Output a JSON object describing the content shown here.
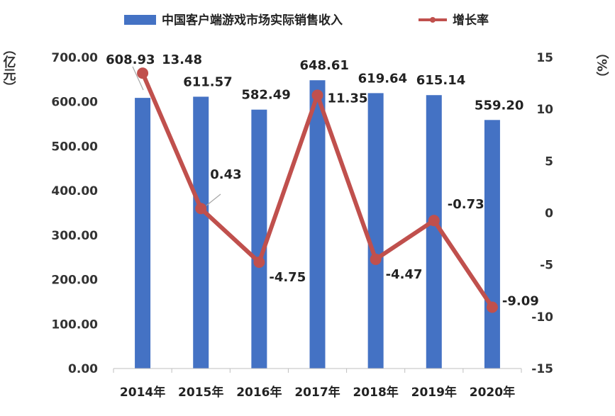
{
  "chart_data": {
    "type": "bar",
    "categories": [
      "2014年",
      "2015年",
      "2016年",
      "2017年",
      "2018年",
      "2019年",
      "2020年"
    ],
    "series": [
      {
        "name": "中国客户端游戏市场实际销售收入",
        "type": "bar",
        "axis": "left",
        "color": "#4472C4",
        "values": [
          608.93,
          611.57,
          582.49,
          648.61,
          619.64,
          615.14,
          559.2
        ],
        "labels": [
          "608.93",
          "611.57",
          "582.49",
          "648.61",
          "619.64",
          "615.14",
          "559.20"
        ]
      },
      {
        "name": "增长率",
        "type": "line",
        "axis": "right",
        "color": "#C0504D",
        "values": [
          13.48,
          0.43,
          -4.75,
          11.35,
          -4.47,
          -0.73,
          -9.09
        ],
        "labels": [
          "13.48",
          "0.43",
          "-4.75",
          "11.35",
          "-4.47",
          "-0.73",
          "-9.09"
        ]
      }
    ],
    "y_left": {
      "label": "（亿元）",
      "min": 0,
      "max": 700,
      "ticks": [
        "0.00",
        "100.00",
        "200.00",
        "300.00",
        "400.00",
        "500.00",
        "600.00",
        "700.00"
      ]
    },
    "y_right": {
      "label": "（%）",
      "min": -15,
      "max": 15,
      "ticks": [
        "-15",
        "-10",
        "-5",
        "0",
        "5",
        "10",
        "15"
      ]
    },
    "legend_position": "top",
    "grid": false
  }
}
